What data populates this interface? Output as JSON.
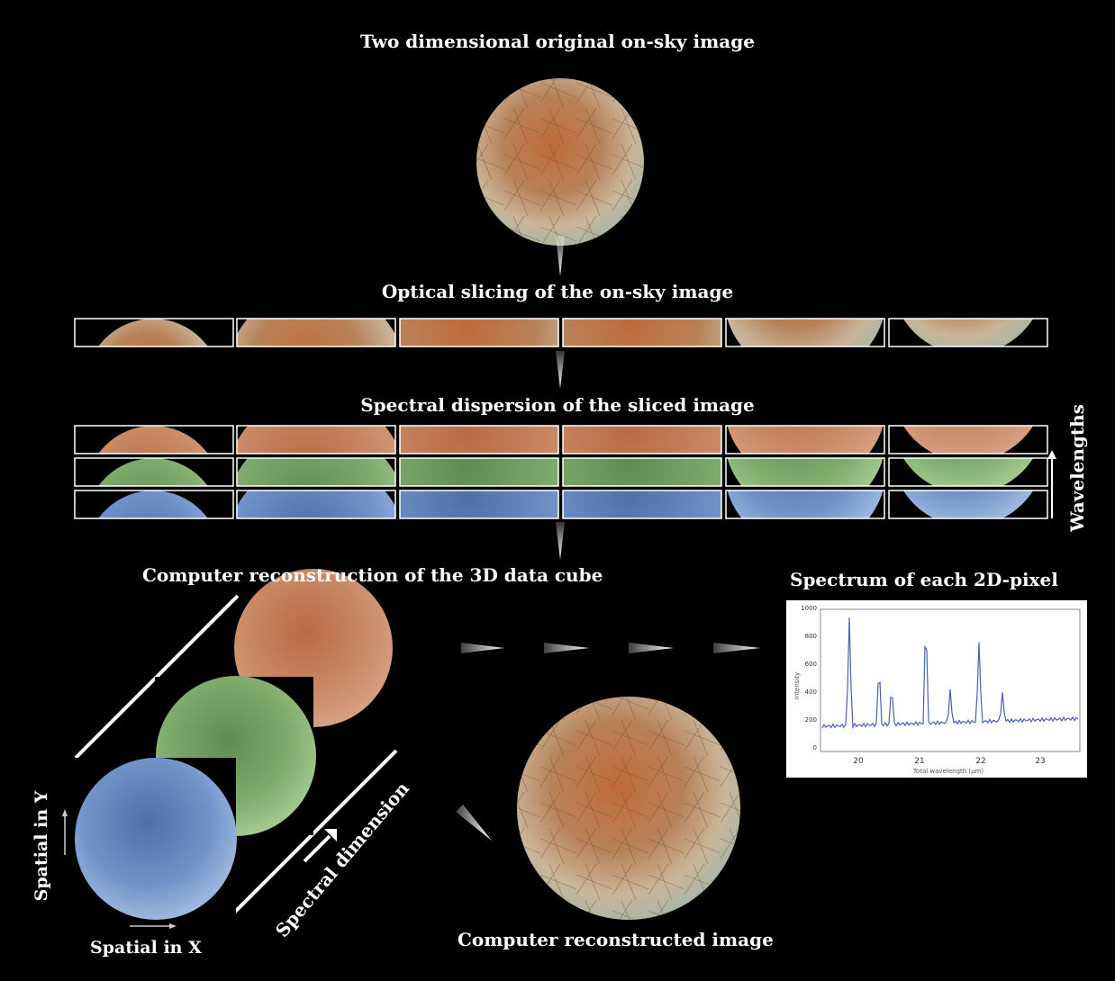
{
  "labels": {
    "top_title": "Two dimensional original on-sky image",
    "slicing_title": "Optical slicing of the on-sky image",
    "dispersion_title": "Spectral dispersion of the sliced image",
    "wavelengths": "Wavelengths",
    "cube_title": "Computer reconstruction of the 3D data cube",
    "spectrum_title": "Spectrum of each 2D-pixel",
    "spatial_y": "Spatial in Y",
    "spatial_x": "Spatial in X",
    "spectral_dimension": "Spectral dimension",
    "reconstructed": "Computer reconstructed image"
  },
  "colors": {
    "background": "#000000",
    "frame": "#ffffff",
    "red_channel": "#c27a55",
    "green_channel": "#7faa6c",
    "blue_channel": "#6d8fc4",
    "spectrum_line": "#4f5fb0"
  },
  "spectrum_plot": {
    "x_ticks": [
      "20",
      "21",
      "22",
      "23"
    ],
    "y_ticks": [
      "0",
      "200",
      "400",
      "600",
      "800",
      "1000"
    ],
    "y_axis_label": "Intensity",
    "x_axis_label": "Total wavelength (µm)"
  }
}
